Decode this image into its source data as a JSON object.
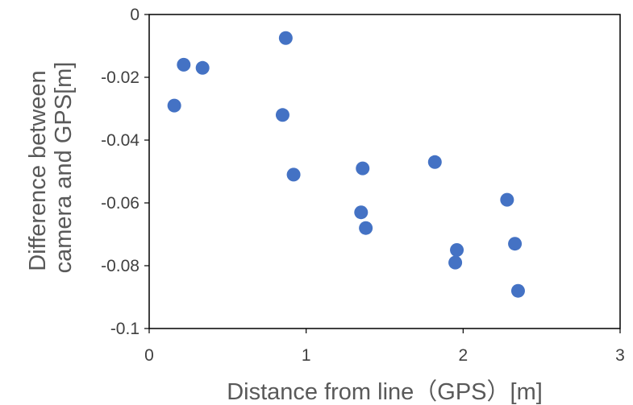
{
  "chart_data": {
    "type": "scatter",
    "xlabel": "Distance from line（GPS）[m]",
    "ylabel_lines": [
      "Difference between",
      "camera and GPS[m]"
    ],
    "xlim": [
      0,
      3
    ],
    "ylim": [
      -0.1,
      0
    ],
    "x_ticks": [
      0,
      1,
      2,
      3
    ],
    "x_tick_labels": [
      "0",
      "1",
      "2",
      "3"
    ],
    "y_ticks": [
      0,
      -0.02,
      -0.04,
      -0.06,
      -0.08,
      -0.1
    ],
    "y_tick_labels": [
      "0",
      "-0.02",
      "-0.04",
      "-0.06",
      "-0.08",
      "-0.1"
    ],
    "grid": false,
    "marker_color": "#4472C4",
    "points": [
      {
        "x": 0.87,
        "y": -0.0075
      },
      {
        "x": 0.22,
        "y": -0.016
      },
      {
        "x": 0.34,
        "y": -0.017
      },
      {
        "x": 0.16,
        "y": -0.029
      },
      {
        "x": 0.85,
        "y": -0.032
      },
      {
        "x": 0.92,
        "y": -0.051
      },
      {
        "x": 1.36,
        "y": -0.049
      },
      {
        "x": 1.82,
        "y": -0.047
      },
      {
        "x": 2.28,
        "y": -0.059
      },
      {
        "x": 1.35,
        "y": -0.063
      },
      {
        "x": 1.38,
        "y": -0.068
      },
      {
        "x": 1.96,
        "y": -0.075
      },
      {
        "x": 2.33,
        "y": -0.073
      },
      {
        "x": 1.95,
        "y": -0.079
      },
      {
        "x": 2.35,
        "y": -0.088
      }
    ]
  }
}
